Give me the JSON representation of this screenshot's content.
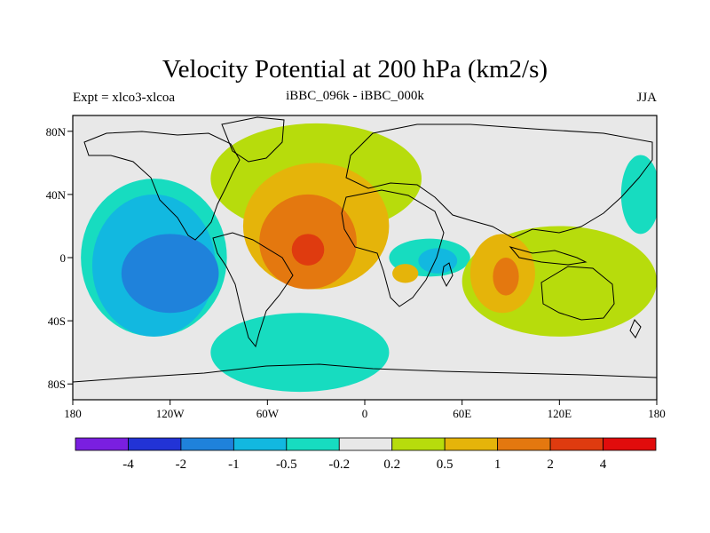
{
  "header": {
    "title": "Velocity Potential at 200 hPa (km2/s)",
    "left_label": "Expt = xlco3-xlcoa",
    "center_label": "iBBC_096k - iBBC_000k",
    "right_label": "JJA"
  },
  "axes": {
    "lat_ticks": [
      "80N",
      "40N",
      "0",
      "40S",
      "80S"
    ],
    "lat_values": [
      80,
      40,
      0,
      -40,
      -80
    ],
    "lon_ticks": [
      "180",
      "120W",
      "60W",
      "0",
      "60E",
      "120E",
      "180"
    ],
    "lon_values": [
      -180,
      -120,
      -60,
      0,
      60,
      120,
      180
    ],
    "lon_range": [
      -180,
      180
    ],
    "lat_range": [
      -90,
      90
    ]
  },
  "colorbar": {
    "labels": [
      "-4",
      "-2",
      "-1",
      "-0.5",
      "-0.2",
      "0.2",
      "0.5",
      "1",
      "2",
      "4"
    ],
    "colors": [
      "#7a1fe0",
      "#2233d6",
      "#1f82db",
      "#12b8e0",
      "#17dcc0",
      "#e8e8e8",
      "#b7dc0c",
      "#e5b40a",
      "#e4780f",
      "#df3b0f",
      "#e10c0c"
    ]
  },
  "field_blobs": [
    {
      "level": 4,
      "lon": -130,
      "lat": 0,
      "rx": 45,
      "ry": 50
    },
    {
      "level": 3,
      "lon": -130,
      "lat": -5,
      "rx": 38,
      "ry": 45
    },
    {
      "level": 2,
      "lon": -120,
      "lat": -10,
      "rx": 30,
      "ry": 25
    },
    {
      "level": 4,
      "lon": 170,
      "lat": 40,
      "rx": 12,
      "ry": 25
    },
    {
      "level": 4,
      "lon": -40,
      "lat": -60,
      "rx": 55,
      "ry": 25
    },
    {
      "level": 4,
      "lon": 40,
      "lat": 0,
      "rx": 25,
      "ry": 12
    },
    {
      "level": 3,
      "lon": 45,
      "lat": -2,
      "rx": 12,
      "ry": 8
    },
    {
      "level": 6,
      "lon": -30,
      "lat": 50,
      "rx": 65,
      "ry": 35
    },
    {
      "level": 7,
      "lon": -30,
      "lat": 20,
      "rx": 45,
      "ry": 40
    },
    {
      "level": 8,
      "lon": -35,
      "lat": 10,
      "rx": 30,
      "ry": 30
    },
    {
      "level": 9,
      "lon": -35,
      "lat": 5,
      "rx": 10,
      "ry": 10
    },
    {
      "level": 6,
      "lon": 120,
      "lat": -15,
      "rx": 60,
      "ry": 35
    },
    {
      "level": 7,
      "lon": 85,
      "lat": -10,
      "rx": 20,
      "ry": 25
    },
    {
      "level": 8,
      "lon": 87,
      "lat": -12,
      "rx": 8,
      "ry": 12
    },
    {
      "level": 7,
      "lon": 25,
      "lat": -10,
      "rx": 8,
      "ry": 6
    }
  ]
}
